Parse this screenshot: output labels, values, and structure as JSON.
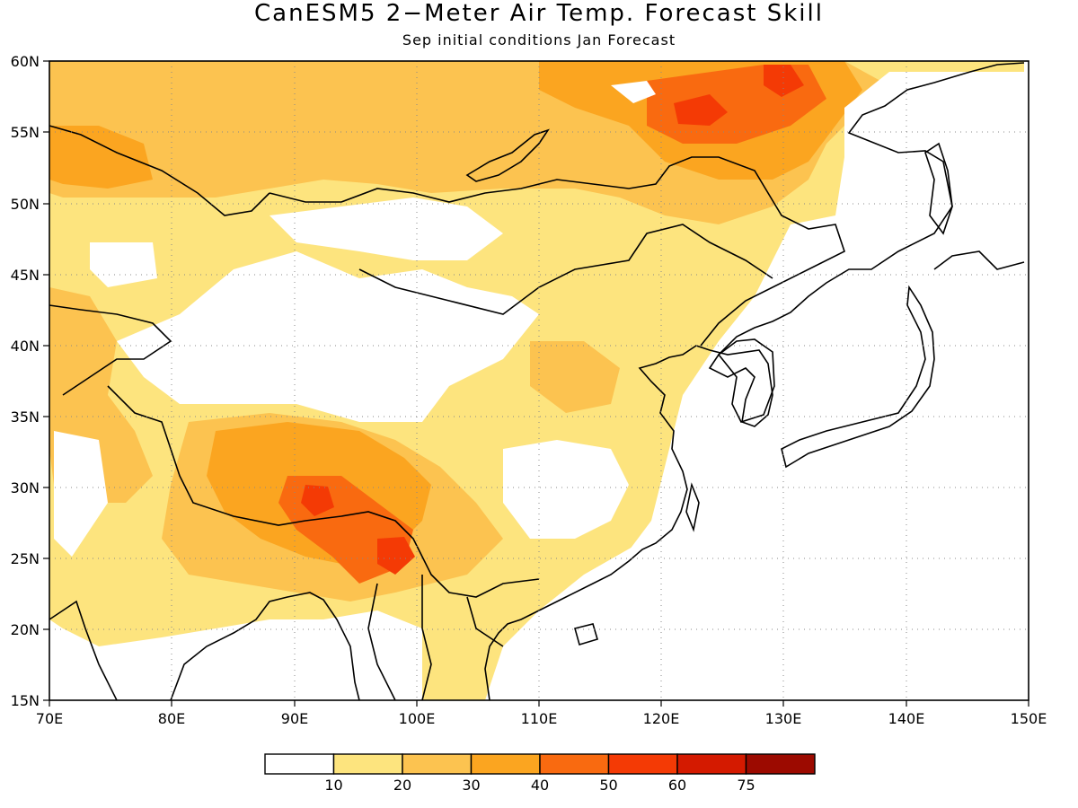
{
  "title": "CanESM5 2−Meter Air Temp. Forecast Skill",
  "subtitle": "Sep initial conditions  Jan Forecast",
  "map": {
    "lon_range": [
      70,
      150
    ],
    "lat_range": [
      15,
      60
    ],
    "lon_ticks": [
      "70E",
      "80E",
      "90E",
      "100E",
      "110E",
      "120E",
      "130E",
      "140E",
      "150E"
    ],
    "lat_ticks": [
      "60N",
      "55N",
      "50N",
      "45N",
      "40N",
      "35N",
      "30N",
      "25N",
      "20N",
      "15N"
    ],
    "gridlines": "dotted"
  },
  "colorbar": {
    "labels": [
      "10",
      "20",
      "30",
      "40",
      "50",
      "60",
      "75"
    ],
    "colors": [
      "#ffffff",
      "#fde47e",
      "#fcc350",
      "#fba520",
      "#f96a10",
      "#f43a05",
      "#d41a00",
      "#9c0a00"
    ]
  }
}
